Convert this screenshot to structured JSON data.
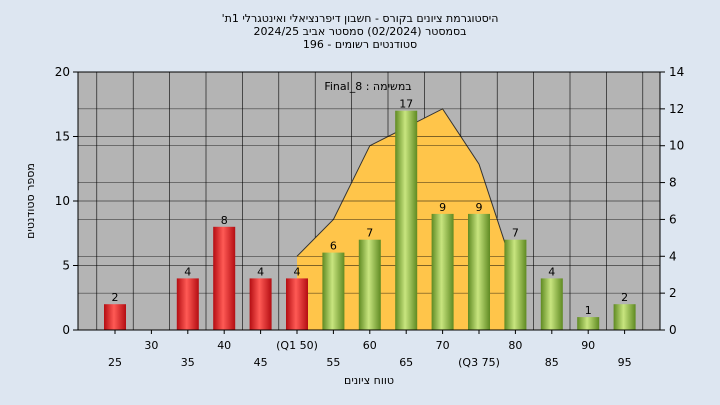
{
  "chart_data": {
    "type": "bar",
    "title_lines": [
      "'היסטוגרמת ציונים בקורס - חשבון דיפרנציאלי ואינטגרלי 1ת",
      "בסמסטר  (02/2024)  סמסטר אביב 2024/25",
      "סטודנטים רשומים - 196"
    ],
    "annotation": "Final_8 : במשימה",
    "xlabel": "טווח ציונים",
    "ylabel": "מספר סטודנטים",
    "categories": [
      "25",
      "30",
      "35",
      "40",
      "45",
      "(Q1 50)",
      "55",
      "60",
      "65",
      "70",
      "(Q3 75)",
      "80",
      "85",
      "90",
      "95"
    ],
    "x_values": [
      25,
      30,
      35,
      40,
      45,
      50,
      55,
      60,
      65,
      70,
      75,
      80,
      85,
      90,
      95
    ],
    "values": [
      2,
      0,
      4,
      8,
      4,
      4,
      6,
      7,
      17,
      9,
      9,
      7,
      4,
      1,
      2
    ],
    "bar_labels": [
      "2",
      "",
      "4",
      "8",
      "4",
      "4",
      "6",
      "7",
      "17",
      "9",
      "9",
      "7",
      "4",
      "1",
      "2"
    ],
    "y_left": {
      "min": 0,
      "max": 20,
      "ticks": [
        "0",
        "5",
        "10",
        "15",
        "20"
      ]
    },
    "y_right": {
      "min": 0,
      "max": 14,
      "ticks": [
        "0",
        "2",
        "4",
        "6",
        "8",
        "10",
        "12",
        "14"
      ]
    },
    "area_series": {
      "x": [
        50,
        55,
        60,
        65,
        70,
        75,
        80
      ],
      "y": [
        4,
        6,
        10,
        11,
        12,
        9,
        3
      ]
    },
    "colors": {
      "background": "#dde6f1",
      "plot_bg": "#b4b4b4",
      "red_bar": "#e8252b",
      "green_bar": "#99c147",
      "area": "#ffc54a",
      "grid": "#000000"
    },
    "grid": true
  }
}
